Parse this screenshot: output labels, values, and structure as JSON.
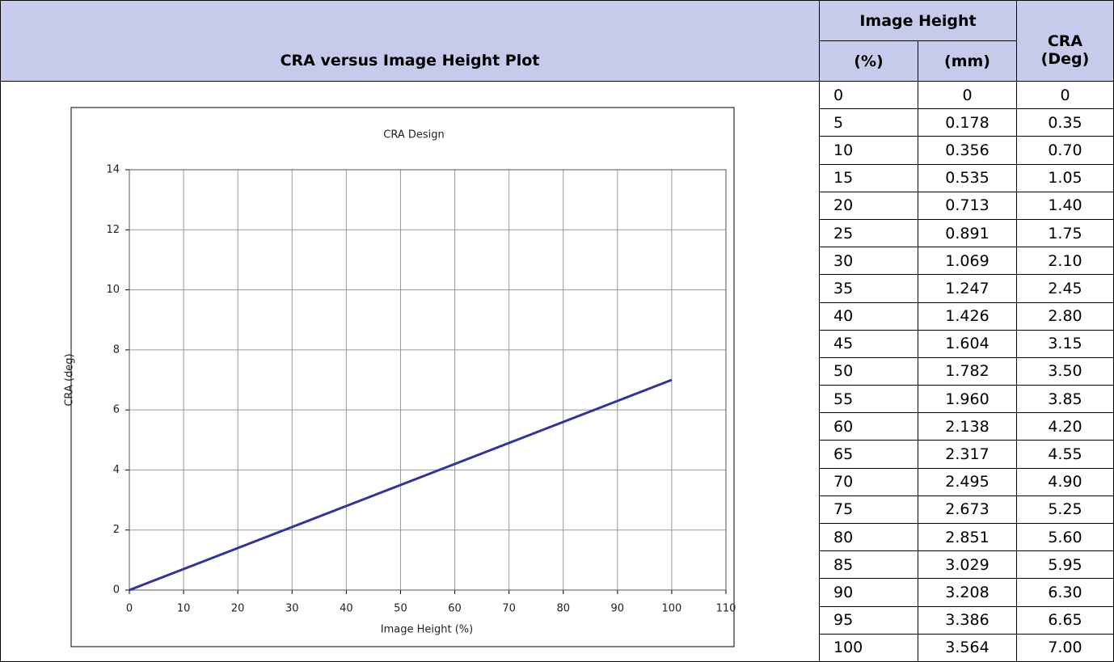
{
  "header": {
    "plot_title": "CRA versus Image Height Plot",
    "image_height": "Image Height",
    "pct": "(%)",
    "mm": "(mm)",
    "cra_1": "CRA",
    "cra_2": "(Deg)"
  },
  "table": {
    "rows": [
      [
        "0",
        "0",
        "0"
      ],
      [
        "5",
        "0.178",
        "0.35"
      ],
      [
        "10",
        "0.356",
        "0.70"
      ],
      [
        "15",
        "0.535",
        "1.05"
      ],
      [
        "20",
        "0.713",
        "1.40"
      ],
      [
        "25",
        "0.891",
        "1.75"
      ],
      [
        "30",
        "1.069",
        "2.10"
      ],
      [
        "35",
        "1.247",
        "2.45"
      ],
      [
        "40",
        "1.426",
        "2.80"
      ],
      [
        "45",
        "1.604",
        "3.15"
      ],
      [
        "50",
        "1.782",
        "3.50"
      ],
      [
        "55",
        "1.960",
        "3.85"
      ],
      [
        "60",
        "2.138",
        "4.20"
      ],
      [
        "65",
        "2.317",
        "4.55"
      ],
      [
        "70",
        "2.495",
        "4.90"
      ],
      [
        "75",
        "2.673",
        "5.25"
      ],
      [
        "80",
        "2.851",
        "5.60"
      ],
      [
        "85",
        "3.029",
        "5.95"
      ],
      [
        "90",
        "3.208",
        "6.30"
      ],
      [
        "95",
        "3.386",
        "6.65"
      ],
      [
        "100",
        "3.564",
        "7.00"
      ]
    ]
  },
  "chart_data": {
    "type": "line",
    "title": "CRA Design",
    "x_label": "Image Height (%)",
    "y_label": "CRA (deg)",
    "x": [
      0,
      5,
      10,
      15,
      20,
      25,
      30,
      35,
      40,
      45,
      50,
      55,
      60,
      65,
      70,
      75,
      80,
      85,
      90,
      95,
      100
    ],
    "values": [
      0,
      0.35,
      0.7,
      1.05,
      1.4,
      1.75,
      2.1,
      2.45,
      2.8,
      3.15,
      3.5,
      3.85,
      4.2,
      4.55,
      4.9,
      5.25,
      5.6,
      5.95,
      6.3,
      6.65,
      7.0
    ],
    "color": "#333399",
    "xlim": [
      0,
      110
    ],
    "xticks": [
      0,
      10,
      20,
      30,
      40,
      50,
      60,
      70,
      80,
      90,
      100,
      110
    ],
    "ylim": [
      0,
      14
    ],
    "yticks": [
      0,
      2,
      4,
      6,
      8,
      10,
      12,
      14
    ],
    "grid": true
  }
}
